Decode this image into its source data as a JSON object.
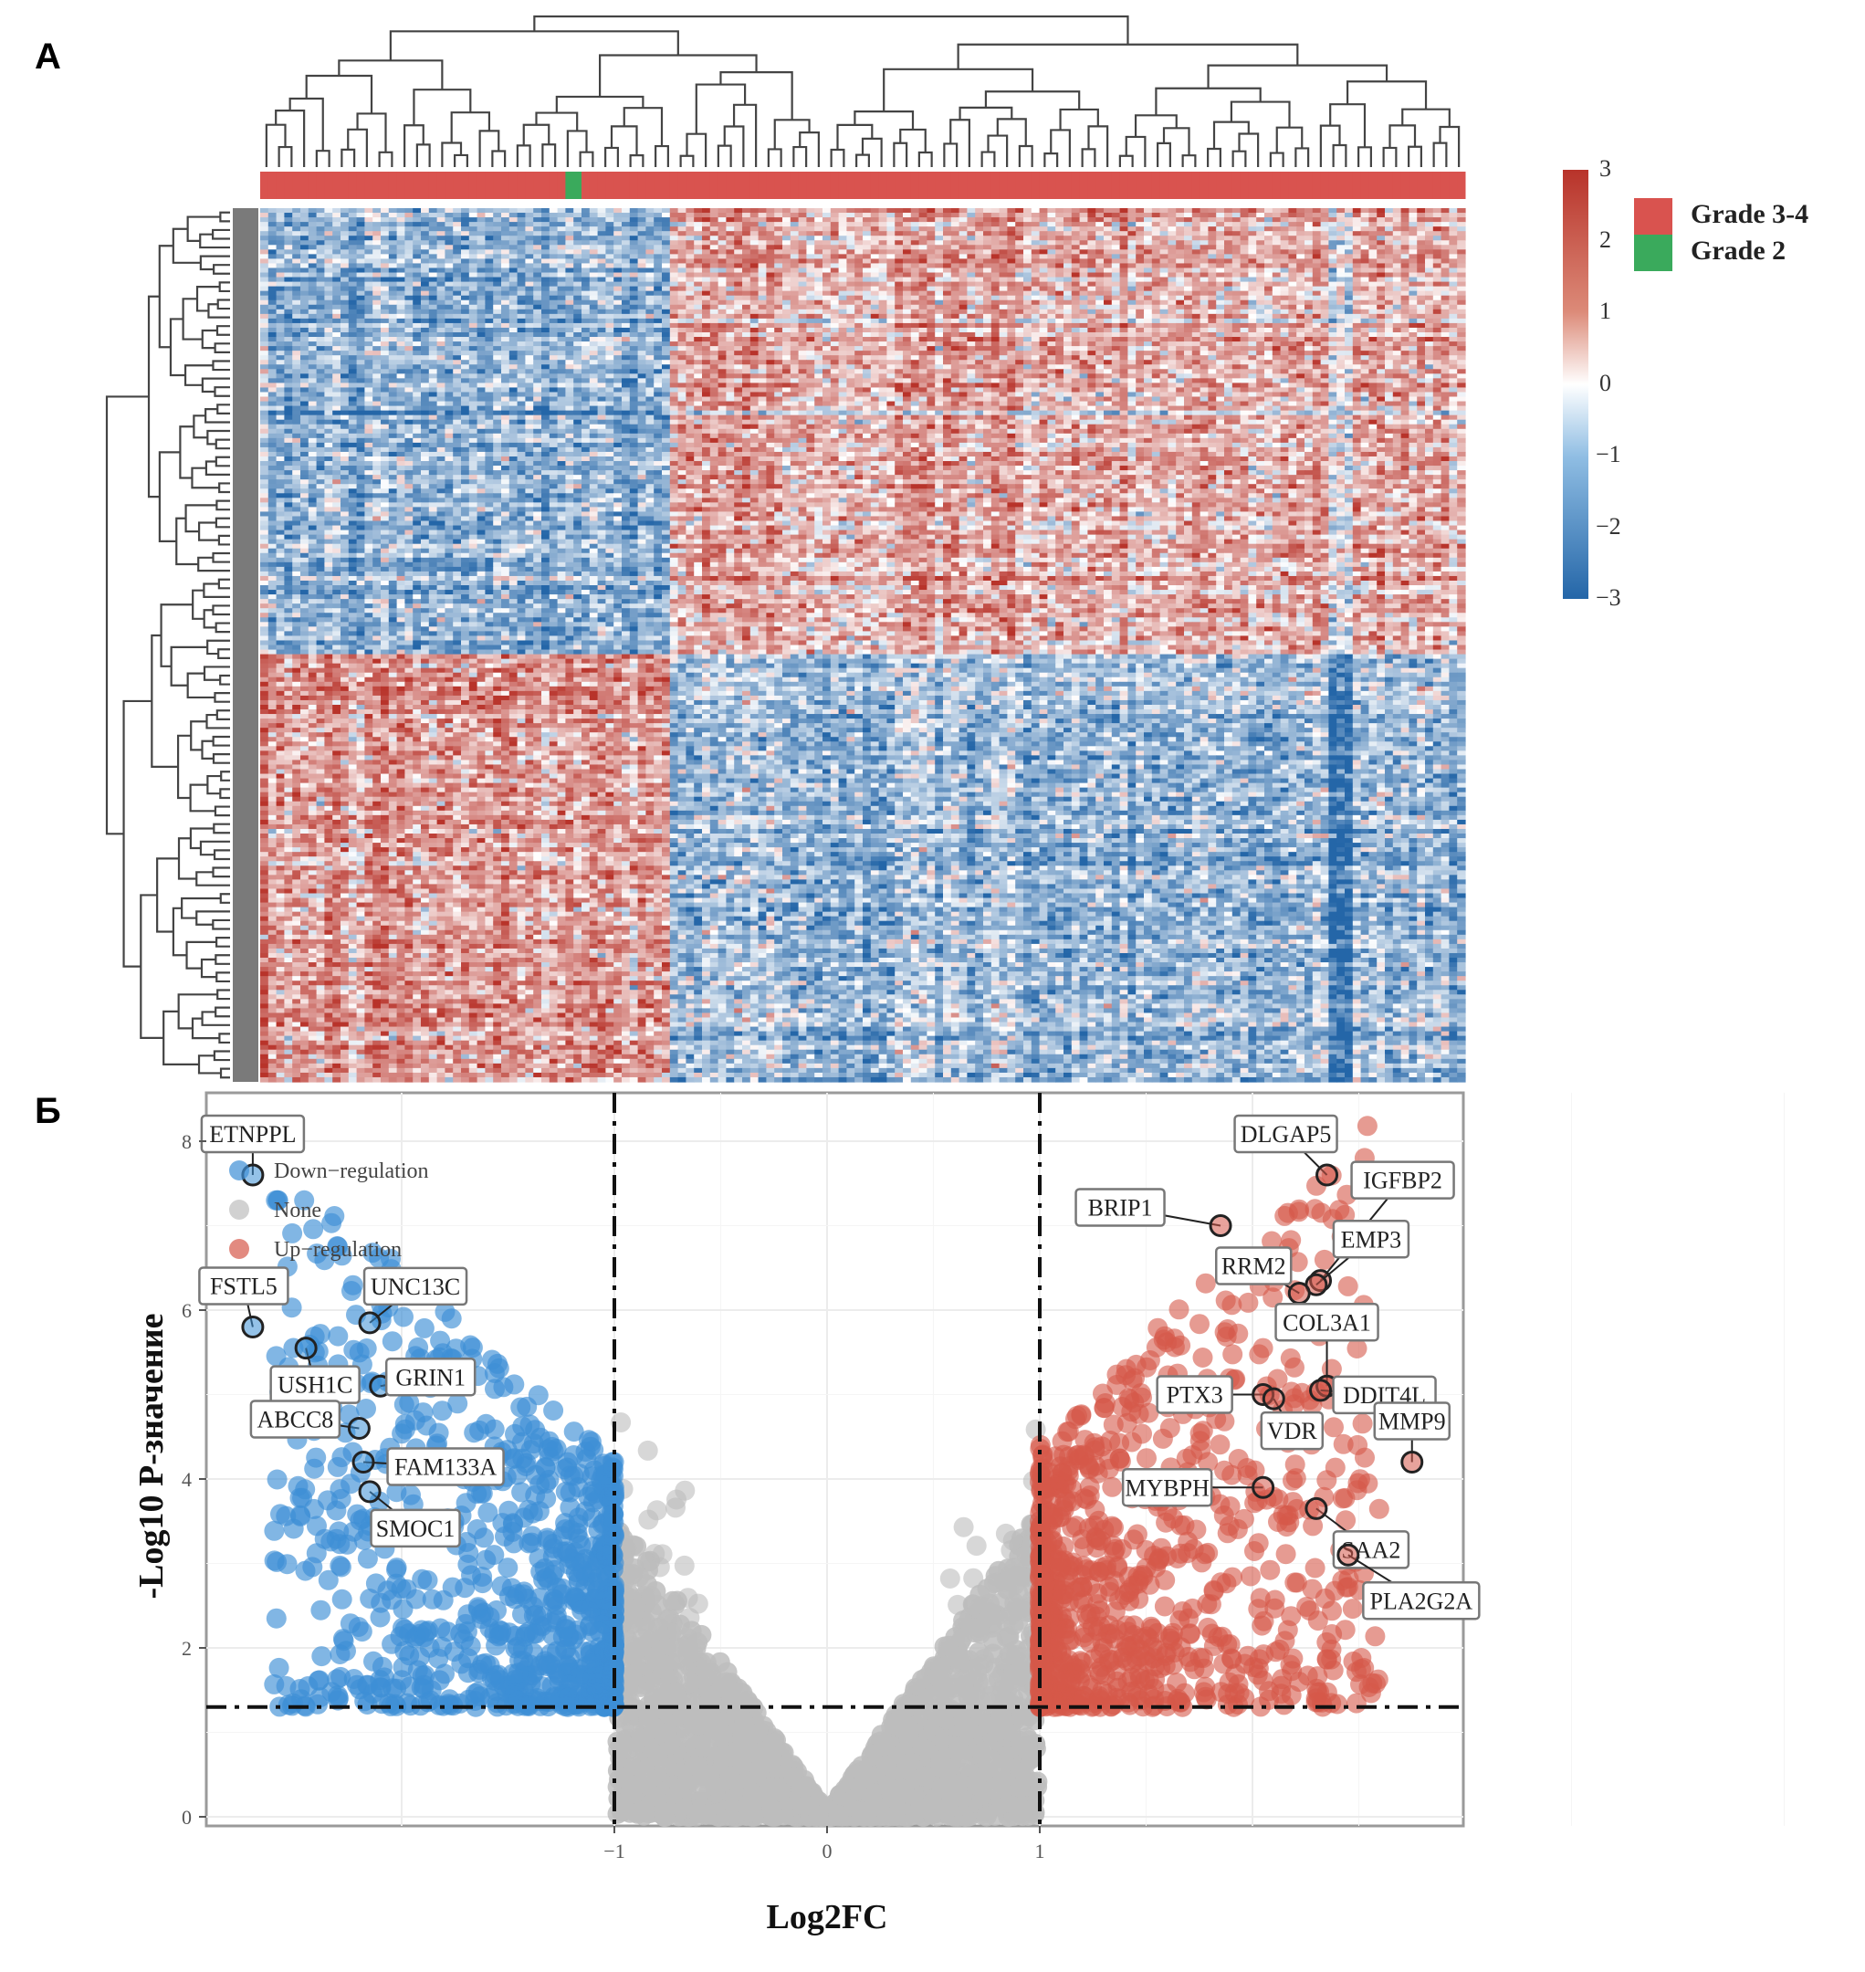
{
  "panels": {
    "a_label": "A",
    "b_label": "Б"
  },
  "heatmap": {
    "colorbar": {
      "ticks": [
        "3",
        "2",
        "1",
        "0",
        "−1",
        "−2",
        "−3"
      ],
      "range": [
        -3,
        3
      ],
      "colors": {
        "high": "#c0392b",
        "mid": "#ffffff",
        "low": "#2470b6"
      }
    },
    "annotation_legend": [
      {
        "label": "Grade 3-4",
        "color": "#d9534f"
      },
      {
        "label": "Grade 2",
        "color": "#3aaa5c"
      }
    ],
    "annotation_pattern": "mostly Grade 3-4 with scattered Grade 2 samples in the left cluster",
    "clusters": {
      "columns": [
        "left cluster (low-grade enriched)",
        "right cluster (Grade 3-4)"
      ],
      "rows": [
        "upper gene block",
        "lower gene block"
      ],
      "mean_z": [
        [
          -1.3,
          1.0
        ],
        [
          1.2,
          -1.1
        ]
      ]
    }
  },
  "chart_data": {
    "type": "scatter",
    "title": "",
    "xlabel": "Log2FC",
    "ylabel": "-Log10 P-значение",
    "xlim": [
      -2.8,
      3.0
    ],
    "ylim": [
      -0.2,
      8.5
    ],
    "x_ticks": [
      "-1",
      "0",
      "1"
    ],
    "y_ticks": [
      "0",
      "2",
      "4",
      "6",
      "8"
    ],
    "thresholds": {
      "log2fc": [
        -1,
        1
      ],
      "neglog10p": 1.3
    },
    "grid": true,
    "legend": {
      "position": "top-left",
      "entries": [
        {
          "label": "Down−regulation",
          "color": "#3d8fd6"
        },
        {
          "label": "None",
          "color": "#bdbdbd"
        },
        {
          "label": "Up−regulation",
          "color": "#d6584a"
        }
      ]
    },
    "labeled_genes": [
      {
        "gene": "ETNPPL",
        "x": -2.7,
        "y": 7.6,
        "group": "down"
      },
      {
        "gene": "FSTL5",
        "x": -2.7,
        "y": 5.8,
        "group": "down"
      },
      {
        "gene": "UNC13C",
        "x": -2.15,
        "y": 5.85,
        "group": "down"
      },
      {
        "gene": "USH1C",
        "x": -2.45,
        "y": 5.55,
        "group": "down"
      },
      {
        "gene": "ABCC8",
        "x": -2.2,
        "y": 4.6,
        "group": "down"
      },
      {
        "gene": "GRIN1",
        "x": -2.1,
        "y": 5.1,
        "group": "down"
      },
      {
        "gene": "FAM133A",
        "x": -2.18,
        "y": 4.2,
        "group": "down"
      },
      {
        "gene": "SMOC1",
        "x": -2.15,
        "y": 3.85,
        "group": "down"
      },
      {
        "gene": "DLGAP5",
        "x": 2.35,
        "y": 7.6,
        "group": "up"
      },
      {
        "gene": "BRIP1",
        "x": 1.85,
        "y": 7.0,
        "group": "up"
      },
      {
        "gene": "IGFBP2",
        "x": 2.32,
        "y": 6.35,
        "group": "up"
      },
      {
        "gene": "EMP3",
        "x": 2.3,
        "y": 6.3,
        "group": "up"
      },
      {
        "gene": "RRM2",
        "x": 2.22,
        "y": 6.2,
        "group": "up"
      },
      {
        "gene": "COL3A1",
        "x": 2.35,
        "y": 5.1,
        "group": "up"
      },
      {
        "gene": "DDIT4L",
        "x": 2.32,
        "y": 5.05,
        "group": "up"
      },
      {
        "gene": "PTX3",
        "x": 2.05,
        "y": 5.0,
        "group": "up"
      },
      {
        "gene": "VDR",
        "x": 2.1,
        "y": 4.95,
        "group": "up"
      },
      {
        "gene": "MMP9",
        "x": 2.75,
        "y": 4.2,
        "group": "up"
      },
      {
        "gene": "MYBPH",
        "x": 2.05,
        "y": 3.9,
        "group": "up"
      },
      {
        "gene": "SAA2",
        "x": 2.3,
        "y": 3.65,
        "group": "up"
      },
      {
        "gene": "PLA2G2A",
        "x": 2.45,
        "y": 3.1,
        "group": "up"
      }
    ],
    "series": [
      {
        "name": "Down−regulation",
        "color": "#3d8fd6",
        "x_range": [
          -2.8,
          -1.0
        ],
        "y_range": [
          1.3,
          7.4
        ]
      },
      {
        "name": "None",
        "color": "#bdbdbd",
        "x_range": [
          -1.0,
          1.0
        ],
        "y_range": [
          0,
          5.6
        ]
      },
      {
        "name": "Up−regulation",
        "color": "#d6584a",
        "x_range": [
          1.0,
          2.8
        ],
        "y_range": [
          1.3,
          8.2
        ]
      }
    ]
  }
}
